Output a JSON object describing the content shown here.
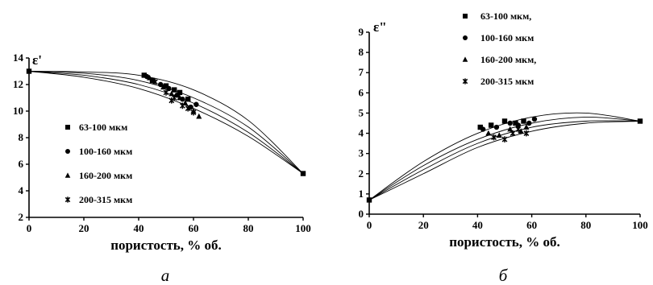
{
  "chart_data": [
    {
      "type": "scatter",
      "panel_label": "а",
      "ylabel": "ε'",
      "xlabel": "пористость, % об.",
      "xlim": [
        0,
        100
      ],
      "ylim": [
        2,
        14
      ],
      "xticks": [
        "0",
        "20",
        "40",
        "60",
        "80",
        "100"
      ],
      "yticks": [
        "2",
        "4",
        "6",
        "8",
        "10",
        "12",
        "14"
      ],
      "legend_position": "left-center",
      "series": [
        {
          "name": "63-100 мкм",
          "marker": "square",
          "points": [
            [
              0,
              13.0
            ],
            [
              42,
              12.7
            ],
            [
              45,
              12.3
            ],
            [
              50,
              11.9
            ],
            [
              53,
              11.6
            ],
            [
              55,
              11.4
            ],
            [
              58,
              10.9
            ],
            [
              100,
              5.3
            ]
          ]
        },
        {
          "name": "100-160 мкм",
          "marker": "circle",
          "points": [
            [
              43,
              12.6
            ],
            [
              48,
              12.0
            ],
            [
              51,
              11.7
            ],
            [
              54,
              11.2
            ],
            [
              56,
              10.9
            ],
            [
              59,
              10.3
            ],
            [
              61,
              10.5
            ]
          ]
        },
        {
          "name": "160-200 мкм",
          "marker": "triangle",
          "points": [
            [
              44,
              12.5
            ],
            [
              49,
              11.8
            ],
            [
              52,
              11.3
            ],
            [
              55,
              11.0
            ],
            [
              57,
              10.6
            ],
            [
              60,
              10.0
            ],
            [
              62,
              9.6
            ]
          ]
        },
        {
          "name": "200-315 мкм",
          "marker": "star",
          "points": [
            [
              46,
              12.2
            ],
            [
              50,
              11.4
            ],
            [
              52,
              10.8
            ],
            [
              53,
              11.0
            ],
            [
              56,
              10.4
            ],
            [
              58,
              10.2
            ],
            [
              60,
              9.9
            ]
          ]
        }
      ],
      "fit_curves": [
        {
          "x": [
            0,
            20,
            40,
            60,
            80,
            100
          ],
          "y": [
            13.0,
            12.95,
            12.7,
            11.6,
            9.3,
            5.3
          ]
        },
        {
          "x": [
            0,
            20,
            40,
            60,
            80,
            100
          ],
          "y": [
            13.0,
            12.85,
            12.3,
            11.0,
            8.8,
            5.3
          ]
        },
        {
          "x": [
            0,
            20,
            40,
            60,
            80,
            100
          ],
          "y": [
            13.0,
            12.7,
            12.0,
            10.6,
            8.4,
            5.3
          ]
        },
        {
          "x": [
            0,
            20,
            40,
            60,
            80,
            100
          ],
          "y": [
            13.0,
            12.55,
            11.7,
            10.2,
            8.1,
            5.3
          ]
        }
      ]
    },
    {
      "type": "scatter",
      "panel_label": "б",
      "ylabel": "ε\"",
      "xlabel": "пористость, % об.",
      "xlim": [
        0,
        100
      ],
      "ylim": [
        0,
        9
      ],
      "xticks": [
        "0",
        "20",
        "40",
        "60",
        "80",
        "100"
      ],
      "yticks": [
        "0",
        "1",
        "2",
        "3",
        "4",
        "5",
        "6",
        "7",
        "8",
        "9"
      ],
      "legend_position": "top-right",
      "series": [
        {
          "name": "63-100 мкм,",
          "marker": "square",
          "points": [
            [
              0,
              0.7
            ],
            [
              41,
              4.3
            ],
            [
              45,
              4.4
            ],
            [
              50,
              4.6
            ],
            [
              54,
              4.5
            ],
            [
              57,
              4.6
            ],
            [
              100,
              4.6
            ]
          ]
        },
        {
          "name": "100-160 мкм",
          "marker": "circle",
          "points": [
            [
              42,
              4.2
            ],
            [
              47,
              4.3
            ],
            [
              52,
              4.5
            ],
            [
              55,
              4.4
            ],
            [
              59,
              4.5
            ],
            [
              61,
              4.7
            ]
          ]
        },
        {
          "name": "160-200 мкм,",
          "marker": "triangle",
          "points": [
            [
              44,
              4.0
            ],
            [
              48,
              3.9
            ],
            [
              52,
              4.2
            ],
            [
              56,
              4.1
            ],
            [
              58,
              4.3
            ]
          ]
        },
        {
          "name": "200-315 мкм",
          "marker": "star",
          "points": [
            [
              46,
              3.8
            ],
            [
              50,
              3.7
            ],
            [
              53,
              4.0
            ],
            [
              55,
              4.2
            ],
            [
              58,
              4.0
            ]
          ]
        }
      ],
      "fit_curves": [
        {
          "x": [
            0,
            20,
            40,
            60,
            80,
            100
          ],
          "y": [
            0.7,
            2.6,
            4.0,
            4.8,
            5.0,
            4.6
          ]
        },
        {
          "x": [
            0,
            20,
            40,
            60,
            80,
            100
          ],
          "y": [
            0.7,
            2.4,
            3.7,
            4.5,
            4.8,
            4.6
          ]
        },
        {
          "x": [
            0,
            20,
            40,
            60,
            80,
            100
          ],
          "y": [
            0.7,
            2.2,
            3.5,
            4.3,
            4.6,
            4.6
          ]
        },
        {
          "x": [
            0,
            20,
            40,
            60,
            80,
            100
          ],
          "y": [
            0.7,
            2.0,
            3.3,
            4.1,
            4.5,
            4.6
          ]
        }
      ]
    }
  ]
}
